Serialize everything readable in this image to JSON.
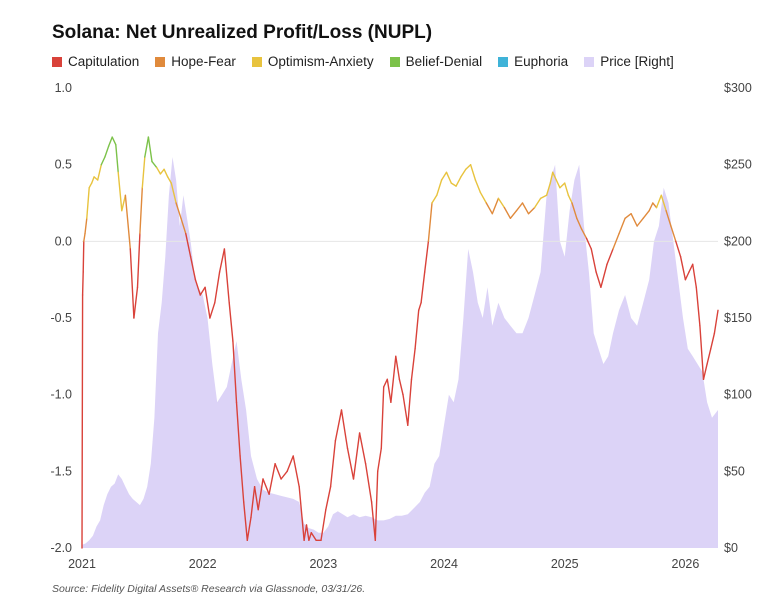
{
  "chart_data": {
    "type": "line",
    "title": "Solana: Net Unrealized Profit/Loss (NUPL)",
    "legend": [
      {
        "name": "Capitulation",
        "color": "#d9423a"
      },
      {
        "name": "Hope-Fear",
        "color": "#e08a3c"
      },
      {
        "name": "Optimism-Anxiety",
        "color": "#e8c33e"
      },
      {
        "name": "Belief-Denial",
        "color": "#7cc24a"
      },
      {
        "name": "Euphoria",
        "color": "#3fb3d8"
      },
      {
        "name": "Price [Right]",
        "color": "#dcd3f7"
      }
    ],
    "x_ticks": [
      "2021",
      "2022",
      "2023",
      "2024",
      "2025",
      "2026"
    ],
    "x_range": [
      2021.0,
      2026.27
    ],
    "y_left_ticks": [
      "1.0",
      "0.5",
      "0.0",
      "-0.5",
      "-1.0",
      "-1.5",
      "-2.0"
    ],
    "y_left_range": [
      -2.0,
      1.0
    ],
    "y_right_ticks": [
      "$300",
      "$250",
      "$200",
      "$150",
      "$100",
      "$50",
      "$0"
    ],
    "y_right_range": [
      0,
      300
    ],
    "nupl_zones": {
      "capitulation_below": 0.0,
      "hope_fear_below": 0.25,
      "optimism_anxiety_below": 0.5,
      "belief_denial_below": 0.75
    },
    "nupl_series": {
      "x": [
        2021.0,
        2021.005,
        2021.01,
        2021.015,
        2021.025,
        2021.04,
        2021.06,
        2021.08,
        2021.1,
        2021.13,
        2021.16,
        2021.19,
        2021.22,
        2021.25,
        2021.28,
        2021.3,
        2021.33,
        2021.36,
        2021.4,
        2021.43,
        2021.46,
        2021.48,
        2021.5,
        2021.52,
        2021.55,
        2021.58,
        2021.62,
        2021.65,
        2021.68,
        2021.71,
        2021.74,
        2021.78,
        2021.82,
        2021.86,
        2021.9,
        2021.94,
        2021.98,
        2022.02,
        2022.06,
        2022.1,
        2022.14,
        2022.18,
        2022.22,
        2022.25,
        2022.28,
        2022.31,
        2022.34,
        2022.37,
        2022.4,
        2022.43,
        2022.46,
        2022.5,
        2022.55,
        2022.6,
        2022.65,
        2022.7,
        2022.75,
        2022.8,
        2022.84,
        2022.86,
        2022.88,
        2022.9,
        2022.94,
        2022.98,
        2023.02,
        2023.06,
        2023.1,
        2023.15,
        2023.2,
        2023.25,
        2023.3,
        2023.35,
        2023.4,
        2023.43,
        2023.45,
        2023.48,
        2023.5,
        2023.53,
        2023.56,
        2023.6,
        2023.63,
        2023.66,
        2023.7,
        2023.73,
        2023.76,
        2023.79,
        2023.81,
        2023.84,
        2023.87,
        2023.9,
        2023.94,
        2023.98,
        2024.02,
        2024.06,
        2024.1,
        2024.14,
        2024.18,
        2024.22,
        2024.26,
        2024.3,
        2024.35,
        2024.4,
        2024.45,
        2024.5,
        2024.55,
        2024.6,
        2024.65,
        2024.7,
        2024.75,
        2024.8,
        2024.85,
        2024.88,
        2024.9,
        2024.93,
        2024.96,
        2025.0,
        2025.03,
        2025.06,
        2025.1,
        2025.14,
        2025.18,
        2025.22,
        2025.26,
        2025.3,
        2025.35,
        2025.4,
        2025.45,
        2025.5,
        2025.55,
        2025.6,
        2025.65,
        2025.7,
        2025.73,
        2025.76,
        2025.8,
        2025.84,
        2025.88,
        2025.92,
        2025.96,
        2026.0,
        2026.03,
        2026.06,
        2026.09,
        2026.12,
        2026.15,
        2026.18,
        2026.21,
        2026.24,
        2026.27
      ],
      "y": [
        -2.0,
        -0.35,
        -0.2,
        0.0,
        0.05,
        0.15,
        0.35,
        0.38,
        0.42,
        0.4,
        0.5,
        0.55,
        0.62,
        0.68,
        0.63,
        0.45,
        0.2,
        0.3,
        -0.05,
        -0.5,
        -0.3,
        0.05,
        0.35,
        0.55,
        0.68,
        0.52,
        0.48,
        0.44,
        0.47,
        0.42,
        0.38,
        0.25,
        0.15,
        0.05,
        -0.1,
        -0.25,
        -0.35,
        -0.3,
        -0.5,
        -0.4,
        -0.2,
        -0.05,
        -0.4,
        -0.65,
        -1.05,
        -1.4,
        -1.7,
        -1.95,
        -1.8,
        -1.6,
        -1.75,
        -1.55,
        -1.65,
        -1.45,
        -1.55,
        -1.5,
        -1.4,
        -1.6,
        -1.95,
        -1.85,
        -1.95,
        -1.9,
        -1.95,
        -1.95,
        -1.75,
        -1.6,
        -1.3,
        -1.1,
        -1.35,
        -1.55,
        -1.25,
        -1.45,
        -1.7,
        -1.95,
        -1.5,
        -1.35,
        -0.95,
        -0.9,
        -1.05,
        -0.75,
        -0.9,
        -1.0,
        -1.2,
        -0.9,
        -0.7,
        -0.45,
        -0.4,
        -0.2,
        0.0,
        0.25,
        0.3,
        0.4,
        0.45,
        0.38,
        0.36,
        0.42,
        0.47,
        0.5,
        0.4,
        0.32,
        0.25,
        0.18,
        0.28,
        0.22,
        0.15,
        0.2,
        0.25,
        0.18,
        0.22,
        0.28,
        0.3,
        0.38,
        0.45,
        0.4,
        0.35,
        0.38,
        0.3,
        0.25,
        0.15,
        0.08,
        0.02,
        -0.05,
        -0.2,
        -0.3,
        -0.15,
        -0.05,
        0.05,
        0.15,
        0.18,
        0.1,
        0.15,
        0.2,
        0.25,
        0.22,
        0.3,
        0.2,
        0.1,
        0.0,
        -0.1,
        -0.25,
        -0.2,
        -0.15,
        -0.3,
        -0.55,
        -0.9,
        -0.8,
        -0.7,
        -0.6,
        -0.45
      ]
    },
    "price_series": {
      "x": [
        2021.0,
        2021.03,
        2021.06,
        2021.09,
        2021.12,
        2021.15,
        2021.18,
        2021.21,
        2021.24,
        2021.27,
        2021.3,
        2021.33,
        2021.36,
        2021.39,
        2021.42,
        2021.45,
        2021.48,
        2021.51,
        2021.54,
        2021.57,
        2021.6,
        2021.63,
        2021.66,
        2021.69,
        2021.72,
        2021.75,
        2021.78,
        2021.81,
        2021.84,
        2021.87,
        2021.9,
        2021.93,
        2021.96,
        2022.0,
        2022.04,
        2022.08,
        2022.12,
        2022.16,
        2022.2,
        2022.24,
        2022.28,
        2022.32,
        2022.36,
        2022.4,
        2022.45,
        2022.5,
        2022.55,
        2022.6,
        2022.65,
        2022.7,
        2022.75,
        2022.8,
        2022.84,
        2022.86,
        2022.88,
        2022.92,
        2022.96,
        2023.0,
        2023.04,
        2023.08,
        2023.12,
        2023.16,
        2023.2,
        2023.25,
        2023.3,
        2023.35,
        2023.4,
        2023.45,
        2023.5,
        2023.55,
        2023.6,
        2023.65,
        2023.7,
        2023.75,
        2023.8,
        2023.84,
        2023.88,
        2023.92,
        2023.96,
        2024.0,
        2024.04,
        2024.08,
        2024.12,
        2024.16,
        2024.2,
        2024.24,
        2024.28,
        2024.32,
        2024.36,
        2024.4,
        2024.45,
        2024.5,
        2024.55,
        2024.6,
        2024.65,
        2024.7,
        2024.75,
        2024.8,
        2024.85,
        2024.88,
        2024.92,
        2024.96,
        2025.0,
        2025.04,
        2025.08,
        2025.12,
        2025.16,
        2025.2,
        2025.24,
        2025.28,
        2025.32,
        2025.36,
        2025.4,
        2025.45,
        2025.5,
        2025.55,
        2025.6,
        2025.65,
        2025.7,
        2025.74,
        2025.78,
        2025.82,
        2025.86,
        2025.9,
        2025.94,
        2025.98,
        2026.02,
        2026.06,
        2026.1,
        2026.14,
        2026.18,
        2026.22,
        2026.27
      ],
      "y": [
        2,
        3,
        5,
        8,
        14,
        18,
        28,
        35,
        40,
        42,
        48,
        45,
        40,
        35,
        32,
        30,
        28,
        32,
        40,
        55,
        85,
        140,
        160,
        190,
        230,
        255,
        240,
        210,
        230,
        215,
        200,
        180,
        170,
        165,
        150,
        120,
        95,
        100,
        105,
        120,
        135,
        110,
        90,
        60,
        45,
        38,
        36,
        35,
        34,
        33,
        32,
        30,
        16,
        14,
        13,
        12,
        10,
        10,
        14,
        22,
        24,
        22,
        20,
        22,
        20,
        21,
        20,
        18,
        18,
        19,
        21,
        21,
        22,
        26,
        30,
        36,
        40,
        55,
        60,
        80,
        100,
        95,
        110,
        150,
        195,
        180,
        160,
        150,
        170,
        145,
        160,
        150,
        145,
        140,
        140,
        150,
        165,
        180,
        230,
        240,
        250,
        200,
        190,
        220,
        240,
        250,
        210,
        180,
        140,
        130,
        120,
        125,
        140,
        155,
        165,
        150,
        145,
        160,
        175,
        200,
        210,
        235,
        225,
        200,
        175,
        150,
        130,
        125,
        120,
        115,
        95,
        85,
        90
      ]
    }
  },
  "source_text": "Source: Fidelity Digital Assets® Research via Glassnode, 03/31/26."
}
